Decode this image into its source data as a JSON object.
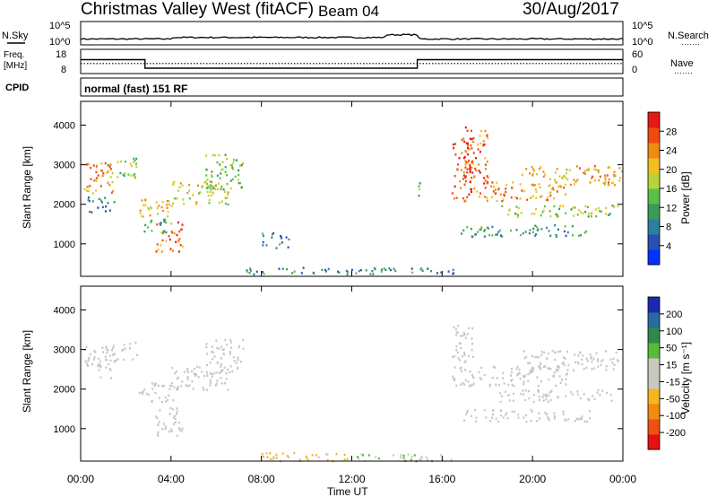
{
  "header": {
    "title": "Christmas Valley West (fitACF)",
    "beam": "Beam 04",
    "date": "30/Aug/2017"
  },
  "labels": {
    "nsky": "N.Sky",
    "nsearch": "N.Search",
    "freq": "Freq.",
    "freq_unit": "[MHz]",
    "nave": "Nave",
    "cpid": "CPID",
    "cpid_value": "normal (fast) 151 RF",
    "xlabel": "Time UT",
    "dotted": "·······"
  },
  "colors": {
    "power": [
      "#0033ff",
      "#2b4fb0",
      "#2d7fa0",
      "#3a9a5a",
      "#5abf48",
      "#b8d43a",
      "#f0c020",
      "#f08a12",
      "#f04a10",
      "#e81818"
    ],
    "velocity": [
      "#e81010",
      "#f05010",
      "#f08a10",
      "#f5b520",
      "#c8c8c0",
      "#c8c8c0",
      "#5aba3a",
      "#2e8a4a",
      "#2a6aa0",
      "#1a2ab0"
    ],
    "trace": "#000000"
  },
  "chart_data": [
    {
      "type": "line",
      "name": "noise",
      "xlabel": "",
      "ylabel": "",
      "left_ticks": [
        "10^5",
        "10^0"
      ],
      "right_ticks": [
        "10^5",
        "10^0"
      ],
      "note": "N.Sky solid, N.Search dotted"
    },
    {
      "type": "line",
      "name": "frequency-nave",
      "left_ticks": [
        "18",
        "8"
      ],
      "right_ticks": [
        "60",
        "0"
      ],
      "freq_mhz": [
        {
          "t": 0.0,
          "v": 14.2
        },
        {
          "t": 2.85,
          "v": 14.2
        },
        {
          "t": 2.85,
          "v": 8.6
        },
        {
          "t": 14.9,
          "v": 8.6
        },
        {
          "t": 14.9,
          "v": 14.2
        },
        {
          "t": 24.0,
          "v": 14.2
        }
      ],
      "nave": [
        {
          "t": 0.0,
          "v": 25
        },
        {
          "t": 24.0,
          "v": 25
        }
      ]
    },
    {
      "type": "heatmap",
      "title": "Power",
      "ylabel": "Slant Range [km]",
      "xlabel": "",
      "ylim": [
        180,
        4600
      ],
      "yticks": [
        1000,
        2000,
        3000,
        4000
      ],
      "xticks": [
        "00:00",
        "04:00",
        "08:00",
        "12:00",
        "16:00",
        "20:00",
        "00:00"
      ],
      "colorbar_label": "Power [dB]",
      "colorbar_ticks": [
        "28",
        "24",
        "20",
        "16",
        "12",
        "8",
        "4"
      ],
      "colorbar_range": [
        0,
        30
      ],
      "regions": [
        {
          "t0": 0.1,
          "t1": 1.4,
          "r0": 2300,
          "r1": 3100,
          "val": 22
        },
        {
          "t0": 1.0,
          "t1": 2.5,
          "r0": 2700,
          "r1": 3200,
          "val": 16
        },
        {
          "t0": 0.3,
          "t1": 1.5,
          "r0": 1800,
          "r1": 2200,
          "val": 8
        },
        {
          "t0": 2.4,
          "t1": 4.1,
          "r0": 1700,
          "r1": 2200,
          "val": 20
        },
        {
          "t0": 4.0,
          "t1": 6.5,
          "r0": 2000,
          "r1": 2600,
          "val": 18
        },
        {
          "t0": 5.5,
          "t1": 7.2,
          "r0": 2400,
          "r1": 3300,
          "val": 14
        },
        {
          "t0": 3.3,
          "t1": 4.5,
          "r0": 800,
          "r1": 1600,
          "val": 24
        },
        {
          "t0": 2.7,
          "t1": 3.8,
          "r0": 1300,
          "r1": 1700,
          "val": 10
        },
        {
          "t0": 8.0,
          "t1": 9.2,
          "r0": 900,
          "r1": 1300,
          "val": 8
        },
        {
          "t0": 16.4,
          "t1": 17.4,
          "r0": 2100,
          "r1": 3700,
          "val": 26
        },
        {
          "t0": 17.0,
          "t1": 18.0,
          "r0": 2400,
          "r1": 4000,
          "val": 24
        },
        {
          "t0": 17.5,
          "t1": 21.5,
          "r0": 2100,
          "r1": 2600,
          "val": 22
        },
        {
          "t0": 19.5,
          "t1": 24.0,
          "r0": 2500,
          "r1": 3000,
          "val": 20
        },
        {
          "t0": 18.5,
          "t1": 23.8,
          "r0": 1700,
          "r1": 2000,
          "val": 16
        },
        {
          "t0": 16.8,
          "t1": 22.5,
          "r0": 1200,
          "r1": 1500,
          "val": 10
        },
        {
          "t0": 7.0,
          "t1": 16.5,
          "r0": 250,
          "r1": 420,
          "val": 8
        },
        {
          "t0": 14.8,
          "t1": 15.0,
          "r0": 2100,
          "r1": 2600,
          "val": 12
        }
      ]
    },
    {
      "type": "heatmap",
      "title": "Velocity",
      "ylabel": "Slant Range [km]",
      "xlabel": "Time UT",
      "ylim": [
        180,
        4600
      ],
      "yticks": [
        1000,
        2000,
        3000,
        4000
      ],
      "xticks": [
        "00:00",
        "04:00",
        "08:00",
        "12:00",
        "16:00",
        "20:00",
        "00:00"
      ],
      "colorbar_label": "Velocity [m s⁻¹]",
      "colorbar_ticks": [
        "200",
        "100",
        "50",
        "15",
        "-15",
        "-50",
        "-100",
        "-200"
      ],
      "colorbar_range": [
        -250,
        250
      ],
      "regions": [
        {
          "t0": 0.1,
          "t1": 1.4,
          "r0": 2300,
          "r1": 3100,
          "val": 0
        },
        {
          "t0": 1.0,
          "t1": 2.5,
          "r0": 2700,
          "r1": 3200,
          "val": 0
        },
        {
          "t0": 2.4,
          "t1": 4.1,
          "r0": 1700,
          "r1": 2200,
          "val": 0
        },
        {
          "t0": 4.0,
          "t1": 6.5,
          "r0": 2000,
          "r1": 2600,
          "val": 0
        },
        {
          "t0": 5.5,
          "t1": 7.2,
          "r0": 2400,
          "r1": 3300,
          "val": 0
        },
        {
          "t0": 3.3,
          "t1": 4.5,
          "r0": 800,
          "r1": 1600,
          "val": 0
        },
        {
          "t0": 16.4,
          "t1": 17.4,
          "r0": 2100,
          "r1": 3700,
          "val": 0
        },
        {
          "t0": 17.5,
          "t1": 21.5,
          "r0": 2100,
          "r1": 2600,
          "val": 0
        },
        {
          "t0": 19.5,
          "t1": 24.0,
          "r0": 2500,
          "r1": 3000,
          "val": 0
        },
        {
          "t0": 18.5,
          "t1": 23.8,
          "r0": 1700,
          "r1": 2000,
          "val": 0
        },
        {
          "t0": 16.8,
          "t1": 22.5,
          "r0": 1200,
          "r1": 1500,
          "val": 0
        },
        {
          "t0": 8.0,
          "t1": 12.0,
          "r0": 200,
          "r1": 420,
          "val": -60
        },
        {
          "t0": 12.0,
          "t1": 16.5,
          "r0": 200,
          "r1": 380,
          "val": 40
        }
      ]
    }
  ]
}
